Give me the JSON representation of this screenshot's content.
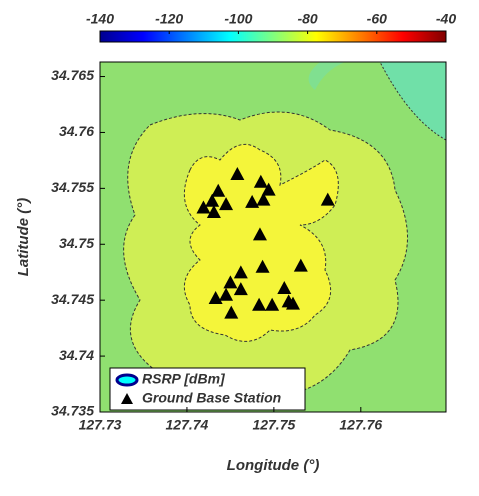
{
  "chart_data": {
    "type": "scatter",
    "xlabel": "Longitude (°)",
    "ylabel": "Latitude (°)",
    "xlim": [
      127.73,
      127.7698
    ],
    "ylim": [
      34.735,
      34.7663
    ],
    "xticks": [
      127.73,
      127.74,
      127.75,
      127.76
    ],
    "yticks": [
      34.735,
      34.74,
      34.745,
      34.75,
      34.755,
      34.76,
      34.765
    ],
    "colorbar": {
      "label": "RSRP [dBm]",
      "lim": [
        -140,
        -40
      ],
      "ticks": [
        -140,
        -120,
        -100,
        -80,
        -60,
        -40
      ]
    },
    "legend": "lower left",
    "series": [
      {
        "name": "Ground Base Station",
        "color": "#000000",
        "marker": "triangle",
        "x": [
          127.7458,
          127.7485,
          127.7494,
          127.7436,
          127.7419,
          127.7429,
          127.7431,
          127.7445,
          127.7475,
          127.7488,
          127.7562,
          127.7484,
          127.7531,
          127.7462,
          127.7487,
          127.745,
          127.7462,
          127.7445,
          127.7433,
          127.7512,
          127.7517,
          127.7522,
          127.7483,
          127.7498,
          127.7451
        ],
        "y": [
          34.7562,
          34.7555,
          34.7548,
          34.7547,
          34.7532,
          34.7538,
          34.7528,
          34.7535,
          34.7537,
          34.7539,
          34.7539,
          34.7508,
          34.748,
          34.7474,
          34.7479,
          34.7465,
          34.7459,
          34.7454,
          34.7451,
          34.746,
          34.7448,
          34.7446,
          34.7445,
          34.7445,
          34.7438
        ]
      }
    ]
  }
}
